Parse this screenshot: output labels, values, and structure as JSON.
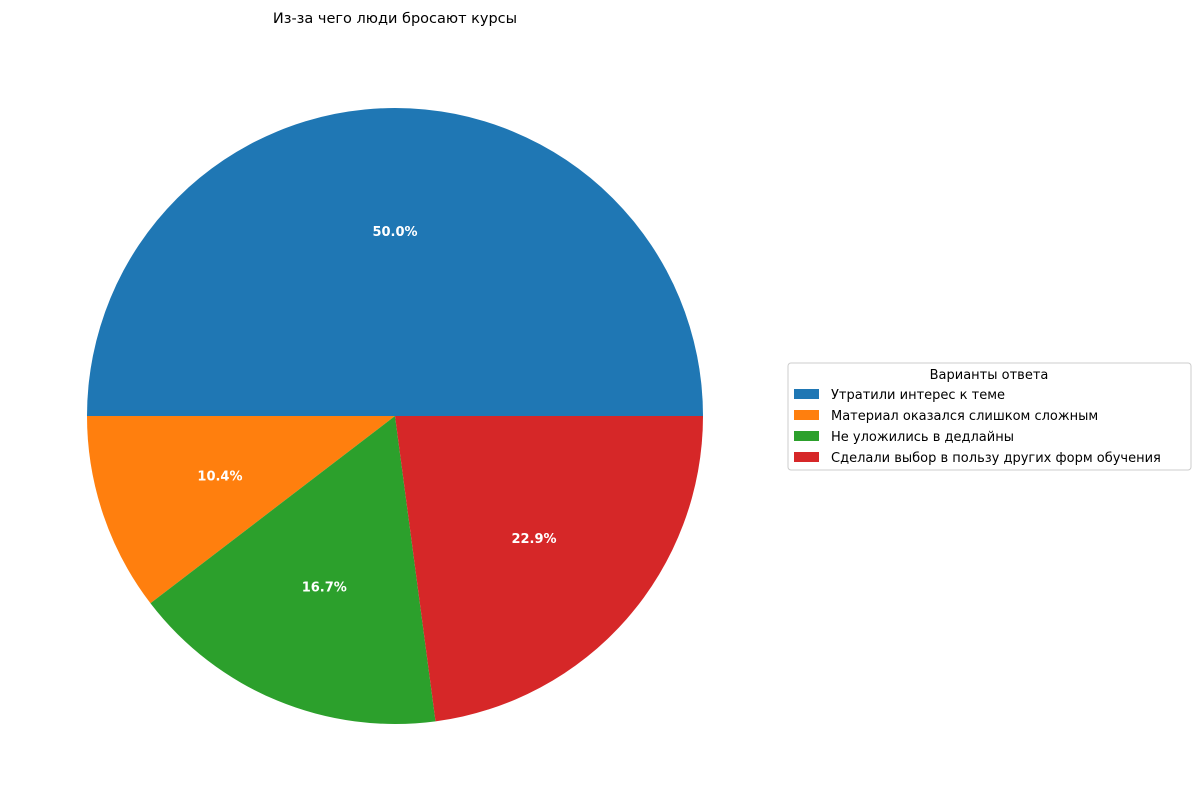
{
  "chart_data": {
    "type": "pie",
    "title": "Из-за чего люди бросают курсы",
    "legend_title": "Варианты ответа",
    "legend_position": "right",
    "start_angle_deg": 0,
    "direction": "counterclockwise",
    "slices": [
      {
        "label": "Утратили интерес к теме",
        "value": 50.0,
        "pct_label": "50.0%",
        "color": "#1f77b4"
      },
      {
        "label": "Материал оказался слишком сложным",
        "value": 10.4,
        "pct_label": "10.4%",
        "color": "#ff7f0e"
      },
      {
        "label": "Не уложились в дедлайны",
        "value": 16.7,
        "pct_label": "16.7%",
        "color": "#2ca02c"
      },
      {
        "label": "Сделали выбор в пользу других форм обучения",
        "value": 22.9,
        "pct_label": "22.9%",
        "color": "#d62728"
      }
    ]
  }
}
